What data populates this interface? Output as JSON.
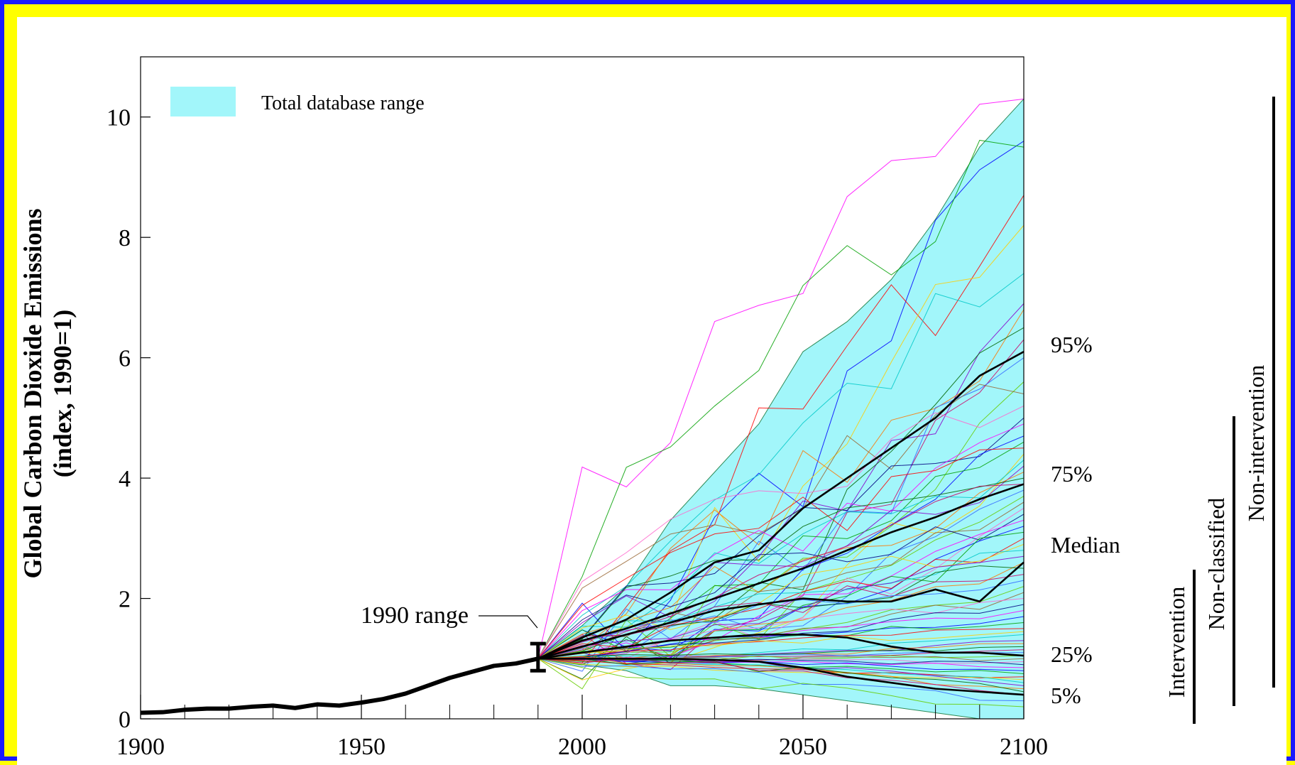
{
  "chart_data": {
    "type": "line",
    "ylabel_line1": "Global Carbon Dioxide Emissions",
    "ylabel_line2": "(index, 1990=1)",
    "xlim": [
      1900,
      2100
    ],
    "ylim": [
      0,
      11
    ],
    "x_ticks": [
      "1900",
      "1950",
      "2000",
      "2050",
      "2100"
    ],
    "y_ticks": [
      "0",
      "2",
      "4",
      "6",
      "8",
      "10"
    ],
    "legend": {
      "label": "Total database range",
      "color": "#a2f6fa"
    },
    "annotation_1990": "1990 range",
    "range_1990": [
      0.8,
      1.25
    ],
    "historical": {
      "x": [
        1900,
        1905,
        1910,
        1915,
        1920,
        1925,
        1930,
        1935,
        1940,
        1945,
        1950,
        1955,
        1960,
        1965,
        1970,
        1975,
        1980,
        1985,
        1990
      ],
      "y": [
        0.1,
        0.11,
        0.15,
        0.17,
        0.17,
        0.2,
        0.22,
        0.18,
        0.24,
        0.22,
        0.27,
        0.33,
        0.42,
        0.55,
        0.68,
        0.78,
        0.88,
        0.92,
        1.0
      ]
    },
    "range_band": {
      "x": [
        1990,
        2000,
        2010,
        2020,
        2030,
        2040,
        2050,
        2060,
        2070,
        2080,
        2090,
        2100
      ],
      "upper": [
        1.0,
        1.55,
        2.2,
        3.3,
        4.1,
        4.9,
        6.1,
        6.6,
        7.3,
        8.3,
        9.5,
        10.3
      ],
      "lower": [
        1.0,
        0.9,
        0.8,
        0.55,
        0.55,
        0.5,
        0.4,
        0.3,
        0.2,
        0.1,
        0.0,
        -0.15
      ]
    },
    "percentiles": [
      {
        "name": "95%",
        "x": [
          1990,
          2000,
          2010,
          2020,
          2030,
          2040,
          2050,
          2060,
          2070,
          2080,
          2090,
          2100
        ],
        "y": [
          1.0,
          1.35,
          1.65,
          2.1,
          2.6,
          2.8,
          3.5,
          4.0,
          4.5,
          5.0,
          5.7,
          6.1
        ]
      },
      {
        "name": "75%",
        "x": [
          1990,
          2000,
          2010,
          2020,
          2030,
          2040,
          2050,
          2060,
          2070,
          2080,
          2090,
          2100
        ],
        "y": [
          1.0,
          1.3,
          1.5,
          1.75,
          2.0,
          2.25,
          2.5,
          2.8,
          3.1,
          3.35,
          3.65,
          3.9
        ]
      },
      {
        "name": "Median",
        "x": [
          1990,
          2000,
          2010,
          2020,
          2030,
          2040,
          2050,
          2060,
          2070,
          2080,
          2090,
          2100
        ],
        "y": [
          1.0,
          1.2,
          1.4,
          1.6,
          1.8,
          1.9,
          2.0,
          1.95,
          1.95,
          2.15,
          1.95,
          2.6
        ]
      },
      {
        "name": "25%",
        "x": [
          1990,
          2000,
          2010,
          2020,
          2030,
          2040,
          2050,
          2060,
          2070,
          2080,
          2090,
          2100
        ],
        "y": [
          1.0,
          1.1,
          1.2,
          1.3,
          1.35,
          1.4,
          1.4,
          1.35,
          1.2,
          1.1,
          1.1,
          1.05
        ]
      },
      {
        "name": "5%",
        "x": [
          1990,
          2000,
          2010,
          2020,
          2030,
          2040,
          2050,
          2060,
          2070,
          2080,
          2090,
          2100
        ],
        "y": [
          1.0,
          1.0,
          1.0,
          1.0,
          0.98,
          0.95,
          0.85,
          0.7,
          0.6,
          0.5,
          0.45,
          0.4
        ]
      }
    ],
    "scenario_colors": [
      "#ff00ff",
      "#0000ff",
      "#00a000",
      "#ff0000",
      "#ffcc00",
      "#00c8c8",
      "#8800cc",
      "#ff7700",
      "#006600",
      "#cc0066",
      "#3366ff",
      "#66cc00",
      "#996633",
      "#ff66cc",
      "#000080"
    ],
    "scenario_endpoints_2100": [
      10.3,
      9.6,
      9.5,
      8.7,
      8.2,
      7.4,
      6.9,
      6.8,
      6.5,
      6.3,
      6.0,
      5.6,
      5.4,
      5.2,
      5.0,
      4.9,
      4.7,
      4.6,
      4.5,
      4.4,
      4.3,
      4.2,
      4.1,
      4.0,
      3.9,
      3.8,
      3.7,
      3.6,
      3.5,
      3.4,
      3.3,
      3.2,
      3.1,
      3.0,
      2.9,
      2.8,
      2.7,
      2.6,
      2.5,
      2.4,
      2.3,
      2.2,
      2.1,
      2.0,
      1.9,
      1.8,
      1.7,
      1.6,
      1.5,
      1.45,
      1.4,
      1.3,
      1.25,
      1.2,
      1.15,
      1.1,
      1.05,
      1.0,
      0.95,
      0.9,
      0.85,
      0.8,
      0.75,
      0.7,
      0.65,
      0.6,
      0.55,
      0.5,
      0.45,
      0.4,
      0.3,
      0.2
    ],
    "right_labels": [
      "95%",
      "75%",
      "Median",
      "25%",
      "5%"
    ],
    "category_bars": [
      "Intervention",
      "Non-classified",
      "Non-intervention"
    ]
  }
}
